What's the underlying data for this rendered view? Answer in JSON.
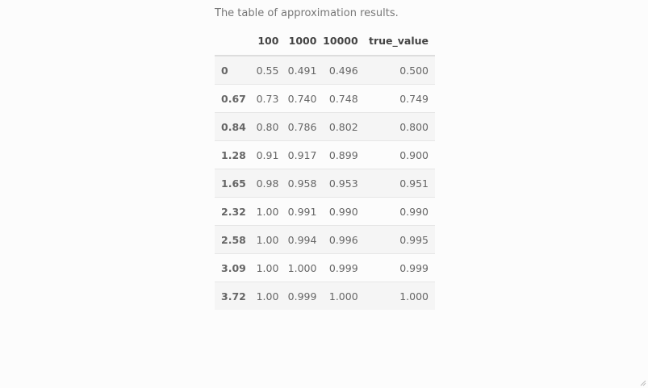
{
  "caption": "The table of approximation results.",
  "table": {
    "columns": [
      "",
      "100",
      "1000",
      "10000",
      "true_value"
    ],
    "rows": [
      {
        "index": "0",
        "cells": [
          "0.55",
          "0.491",
          "0.496",
          "0.500"
        ]
      },
      {
        "index": "0.67",
        "cells": [
          "0.73",
          "0.740",
          "0.748",
          "0.749"
        ]
      },
      {
        "index": "0.84",
        "cells": [
          "0.80",
          "0.786",
          "0.802",
          "0.800"
        ]
      },
      {
        "index": "1.28",
        "cells": [
          "0.91",
          "0.917",
          "0.899",
          "0.900"
        ]
      },
      {
        "index": "1.65",
        "cells": [
          "0.98",
          "0.958",
          "0.953",
          "0.951"
        ]
      },
      {
        "index": "2.32",
        "cells": [
          "1.00",
          "0.991",
          "0.990",
          "0.990"
        ]
      },
      {
        "index": "2.58",
        "cells": [
          "1.00",
          "0.994",
          "0.996",
          "0.995"
        ]
      },
      {
        "index": "3.09",
        "cells": [
          "1.00",
          "1.000",
          "0.999",
          "0.999"
        ]
      },
      {
        "index": "3.72",
        "cells": [
          "1.00",
          "0.999",
          "1.000",
          "1.000"
        ]
      }
    ]
  }
}
